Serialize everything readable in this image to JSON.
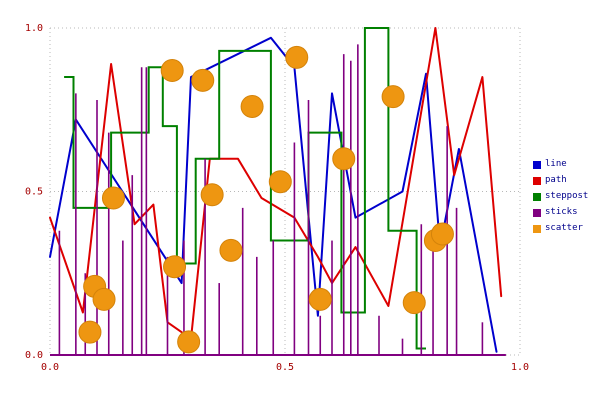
{
  "chart_data": {
    "type": "mixed",
    "title": "",
    "xlabel": "",
    "ylabel": "",
    "xlim": [
      0.0,
      1.0
    ],
    "ylim": [
      0.0,
      1.0
    ],
    "grid": true,
    "legend_position": "right",
    "tick_color": "#a40000",
    "legend_text_color": "#00008b",
    "xticks": [
      {
        "value": 0.0,
        "label": "0.0"
      },
      {
        "value": 0.5,
        "label": "0.5"
      },
      {
        "value": 1.0,
        "label": "1.0"
      }
    ],
    "yticks": [
      {
        "value": 0.0,
        "label": "0.0"
      },
      {
        "value": 0.5,
        "label": "0.5"
      },
      {
        "value": 1.0,
        "label": "1.0"
      }
    ],
    "series": [
      {
        "name": "line",
        "type": "line",
        "color": "#0000cd",
        "x": [
          0.0,
          0.055,
          0.28,
          0.3,
          0.47,
          0.52,
          0.57,
          0.6,
          0.65,
          0.75,
          0.8,
          0.83,
          0.87,
          0.95
        ],
        "y": [
          0.3,
          0.72,
          0.22,
          0.85,
          0.97,
          0.88,
          0.12,
          0.8,
          0.42,
          0.5,
          0.86,
          0.33,
          0.63,
          0.01
        ]
      },
      {
        "name": "path",
        "type": "line",
        "color": "#dd0000",
        "x": [
          0.0,
          0.07,
          0.13,
          0.18,
          0.22,
          0.25,
          0.3,
          0.34,
          0.4,
          0.45,
          0.52,
          0.57,
          0.6,
          0.65,
          0.72,
          0.82,
          0.86,
          0.92,
          0.96
        ],
        "y": [
          0.42,
          0.13,
          0.89,
          0.4,
          0.46,
          0.1,
          0.05,
          0.6,
          0.6,
          0.48,
          0.42,
          0.3,
          0.22,
          0.33,
          0.15,
          1.0,
          0.55,
          0.85,
          0.18
        ]
      },
      {
        "name": "steppost",
        "type": "step-post",
        "color": "#008000",
        "x": [
          0.03,
          0.05,
          0.13,
          0.21,
          0.24,
          0.27,
          0.31,
          0.36,
          0.47,
          0.55,
          0.62,
          0.67,
          0.72,
          0.78,
          0.8
        ],
        "y": [
          0.85,
          0.45,
          0.68,
          0.88,
          0.7,
          0.28,
          0.6,
          0.93,
          0.35,
          0.68,
          0.13,
          1.0,
          0.38,
          0.02,
          0.02
        ]
      },
      {
        "name": "sticks",
        "type": "stem",
        "color": "#800080",
        "baseline": 0.0,
        "baseline_x": [
          0.0,
          0.97
        ],
        "x": [
          0.02,
          0.055,
          0.075,
          0.1,
          0.125,
          0.155,
          0.175,
          0.195,
          0.205,
          0.25,
          0.285,
          0.33,
          0.36,
          0.41,
          0.44,
          0.475,
          0.52,
          0.55,
          0.575,
          0.6,
          0.625,
          0.64,
          0.655,
          0.7,
          0.75,
          0.79,
          0.815,
          0.845,
          0.865,
          0.92
        ],
        "y": [
          0.38,
          0.8,
          0.25,
          0.78,
          0.68,
          0.35,
          0.55,
          0.88,
          0.88,
          0.3,
          0.35,
          0.6,
          0.22,
          0.45,
          0.3,
          0.35,
          0.65,
          0.78,
          0.12,
          0.35,
          0.92,
          0.9,
          0.95,
          0.12,
          0.05,
          0.4,
          0.35,
          0.7,
          0.45,
          0.1
        ]
      },
      {
        "name": "scatter",
        "type": "scatter",
        "color": "#ee9611",
        "edge_color": "#d4830a",
        "marker_radius": 11,
        "x": [
          0.085,
          0.095,
          0.115,
          0.135,
          0.26,
          0.265,
          0.295,
          0.325,
          0.345,
          0.385,
          0.43,
          0.49,
          0.525,
          0.575,
          0.625,
          0.73,
          0.775,
          0.82,
          0.835
        ],
        "y": [
          0.07,
          0.21,
          0.17,
          0.48,
          0.87,
          0.27,
          0.04,
          0.84,
          0.49,
          0.32,
          0.76,
          0.53,
          0.91,
          0.17,
          0.6,
          0.79,
          0.16,
          0.35,
          0.37
        ]
      }
    ]
  }
}
